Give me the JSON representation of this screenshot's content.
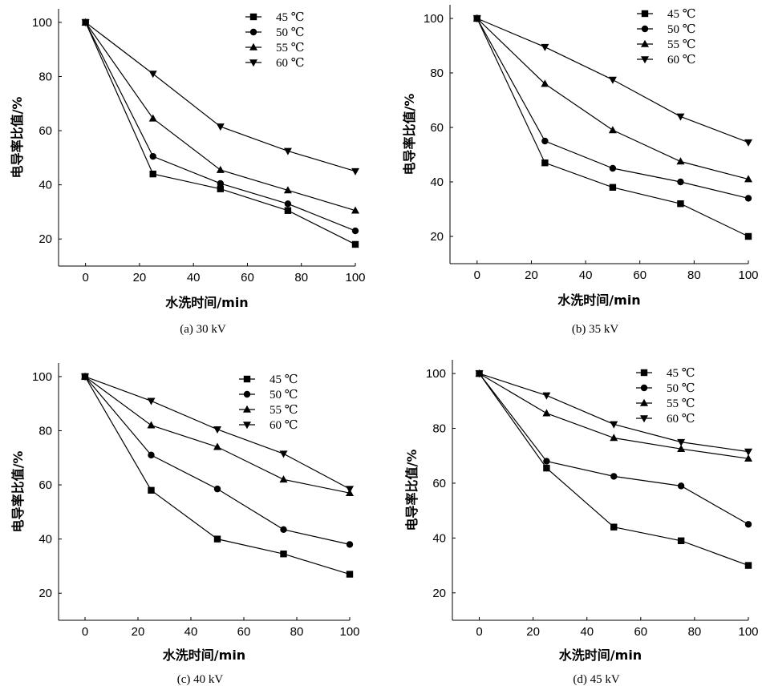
{
  "figure_title": "",
  "chart_data": [
    {
      "type": "line",
      "title": "",
      "caption": "(a) 30 kV",
      "xlabel": "水洗时间/min",
      "ylabel": "电导率比值/%",
      "xlim": [
        -10,
        100
      ],
      "ylim": [
        10,
        105
      ],
      "xticks": [
        0,
        20,
        40,
        60,
        80,
        100
      ],
      "yticks": [
        20,
        40,
        60,
        80,
        100
      ],
      "legend_position": "top-right",
      "x": [
        0,
        25,
        50,
        75,
        100
      ],
      "series": [
        {
          "name": "45 ℃",
          "marker": "square",
          "values": [
            100,
            44,
            38.5,
            30.5,
            18
          ]
        },
        {
          "name": "50 ℃",
          "marker": "circle",
          "values": [
            100,
            50.5,
            40.5,
            33,
            23
          ]
        },
        {
          "name": "55 ℃",
          "marker": "triangle-up",
          "values": [
            100,
            64.5,
            45.5,
            38,
            30.5
          ]
        },
        {
          "name": "60 ℃",
          "marker": "triangle-down",
          "values": [
            100,
            81,
            61.5,
            52.5,
            45
          ]
        }
      ]
    },
    {
      "type": "line",
      "title": "",
      "caption": "(b) 35 kV",
      "xlabel": "水洗时间/min",
      "ylabel": "电导率比值/%",
      "xlim": [
        -10,
        100
      ],
      "ylim": [
        10,
        105
      ],
      "xticks": [
        0,
        20,
        40,
        60,
        80,
        100
      ],
      "yticks": [
        20,
        40,
        60,
        80,
        100
      ],
      "legend_position": "top-right",
      "x": [
        0,
        25,
        50,
        75,
        100
      ],
      "series": [
        {
          "name": "45 ℃",
          "marker": "square",
          "values": [
            100,
            47,
            38,
            32,
            20
          ]
        },
        {
          "name": "50 ℃",
          "marker": "circle",
          "values": [
            100,
            55,
            45,
            40,
            34
          ]
        },
        {
          "name": "55 ℃",
          "marker": "triangle-up",
          "values": [
            100,
            76,
            59,
            47.5,
            41
          ]
        },
        {
          "name": "60 ℃",
          "marker": "triangle-down",
          "values": [
            100,
            89.5,
            77.5,
            64,
            54.5
          ]
        }
      ]
    },
    {
      "type": "line",
      "title": "",
      "caption": "(c) 40 kV",
      "xlabel": "水洗时间/min",
      "ylabel": "电导率比值/%",
      "xlim": [
        -10,
        100
      ],
      "ylim": [
        10,
        105
      ],
      "xticks": [
        0,
        20,
        40,
        60,
        80,
        100
      ],
      "yticks": [
        20,
        40,
        60,
        80,
        100
      ],
      "legend_position": "top-right",
      "x": [
        0,
        25,
        50,
        75,
        100
      ],
      "series": [
        {
          "name": "45 ℃",
          "marker": "square",
          "values": [
            100,
            58,
            40,
            34.5,
            27
          ]
        },
        {
          "name": "50 ℃",
          "marker": "circle",
          "values": [
            100,
            71,
            58.5,
            43.5,
            38
          ]
        },
        {
          "name": "55 ℃",
          "marker": "triangle-up",
          "values": [
            100,
            82,
            74,
            62,
            57
          ]
        },
        {
          "name": "60 ℃",
          "marker": "triangle-down",
          "values": [
            100,
            91,
            80.5,
            71.5,
            58.5
          ]
        }
      ]
    },
    {
      "type": "line",
      "title": "",
      "caption": "(d) 45 kV",
      "xlabel": "水洗时间/min",
      "ylabel": "电导率比值/%",
      "xlim": [
        -10,
        100
      ],
      "ylim": [
        10,
        105
      ],
      "xticks": [
        0,
        20,
        40,
        60,
        80,
        100
      ],
      "yticks": [
        20,
        40,
        60,
        80,
        100
      ],
      "legend_position": "top-right",
      "x": [
        0,
        25,
        50,
        75,
        100
      ],
      "series": [
        {
          "name": "45 ℃",
          "marker": "square",
          "values": [
            100,
            65.5,
            44,
            39,
            30
          ]
        },
        {
          "name": "50 ℃",
          "marker": "circle",
          "values": [
            100,
            68,
            62.5,
            59,
            45
          ]
        },
        {
          "name": "55 ℃",
          "marker": "triangle-up",
          "values": [
            100,
            85.5,
            76.5,
            72.5,
            69
          ]
        },
        {
          "name": "60 ℃",
          "marker": "triangle-down",
          "values": [
            100,
            92,
            81.5,
            75,
            71.5
          ]
        }
      ]
    }
  ]
}
